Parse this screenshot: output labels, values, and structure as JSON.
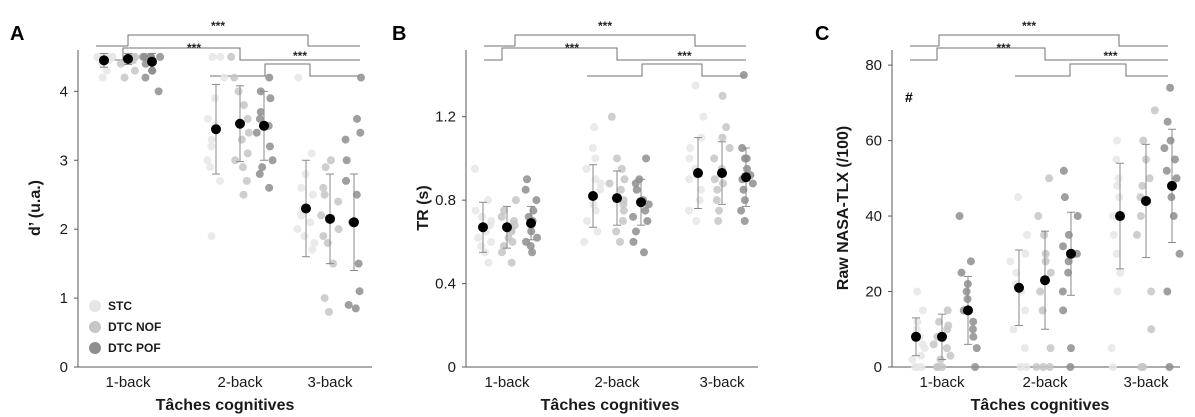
{
  "colors": {
    "stc": "#e6e6e6",
    "nof": "#c6c6c6",
    "pof": "#8e8e8e",
    "mean": "#000000",
    "errorbar": "#8a8a8a"
  },
  "legend": {
    "items": [
      {
        "label": "STC",
        "color": "#e6e6e6"
      },
      {
        "label": "DTC NOF",
        "color": "#c6c6c6"
      },
      {
        "label": "DTC POF",
        "color": "#8e8e8e"
      }
    ]
  },
  "significance": {
    "label": "***",
    "hash": "#"
  },
  "chart_data": [
    {
      "type": "scatter",
      "panel": "A",
      "ylabel": "d’ (u.a.)",
      "xlabel": "Tâches cognitives",
      "categories": [
        "1-back",
        "2-back",
        "3-back"
      ],
      "ylim": [
        0,
        4.6
      ],
      "yticks": [
        "0",
        "1",
        "2",
        "3",
        "4"
      ],
      "ytick_values": [
        0,
        1,
        2,
        3,
        4
      ],
      "series": [
        {
          "name": "STC",
          "means": [
            4.45,
            3.45,
            2.3
          ],
          "sd": [
            0.1,
            0.65,
            0.7
          ],
          "points": [
            [
              4.5,
              4.5,
              4.5,
              4.45,
              4.4,
              4.3,
              4.5,
              4.5,
              4.2,
              4.5
            ],
            [
              4.5,
              3.9,
              3.5,
              3.2,
              3.0,
              2.9,
              3.6,
              4.2,
              1.9,
              3.3,
              4.5,
              2.7
            ],
            [
              4.2,
              2.6,
              2.3,
              2.0,
              1.8,
              3.1,
              2.2,
              2.5,
              1.9,
              2.8,
              2.1,
              1.7
            ]
          ]
        },
        {
          "name": "DTC NOF",
          "means": [
            4.47,
            3.53,
            2.15
          ],
          "sd": [
            0.08,
            0.55,
            0.65
          ],
          "points": [
            [
              4.5,
              4.5,
              4.5,
              4.4,
              4.45,
              4.3,
              4.5,
              4.5,
              4.5,
              4.2
            ],
            [
              4.5,
              3.6,
              3.0,
              3.3,
              2.5,
              4.2,
              3.8,
              3.4,
              2.9,
              4.0,
              3.1,
              2.7
            ],
            [
              2.9,
              2.4,
              2.0,
              1.5,
              1.8,
              0.8,
              2.5,
              2.2,
              1.0,
              2.6,
              1.9,
              3.0
            ]
          ]
        },
        {
          "name": "DTC POF",
          "means": [
            4.43,
            3.5,
            2.1
          ],
          "sd": [
            0.12,
            0.5,
            0.7
          ],
          "points": [
            [
              4.5,
              4.5,
              4.4,
              4.5,
              4.3,
              4.2,
              4.5,
              4.0,
              4.5,
              4.3
            ],
            [
              4.2,
              3.9,
              3.5,
              3.2,
              2.9,
              2.6,
              3.7,
              4.0,
              3.4,
              3.0,
              2.8,
              3.6
            ],
            [
              4.2,
              3.6,
              3.4,
              3.0,
              2.7,
              2.1,
              1.5,
              1.1,
              0.9,
              0.85,
              2.5,
              3.3
            ]
          ]
        }
      ]
    },
    {
      "type": "scatter",
      "panel": "B",
      "ylabel": "TR (s)",
      "xlabel": "Tâches cognitives",
      "categories": [
        "1-back",
        "2-back",
        "3-back"
      ],
      "ylim": [
        0,
        1.52
      ],
      "yticks": [
        "0",
        "0.4",
        "0.8",
        "1.2"
      ],
      "ytick_values": [
        0,
        0.4,
        0.8,
        1.2
      ],
      "series": [
        {
          "name": "STC",
          "means": [
            0.67,
            0.82,
            0.93
          ],
          "sd": [
            0.12,
            0.15,
            0.17
          ],
          "points": [
            [
              0.95,
              0.7,
              0.65,
              0.6,
              0.55,
              0.72,
              0.62,
              0.8,
              0.68,
              0.58,
              0.75,
              0.5
            ],
            [
              1.15,
              0.9,
              0.85,
              0.75,
              0.7,
              0.65,
              1.0,
              0.95,
              0.78,
              0.6,
              0.88,
              1.05
            ],
            [
              1.35,
              1.0,
              0.95,
              0.9,
              0.85,
              0.75,
              1.1,
              0.7,
              1.2,
              0.8,
              0.92,
              1.05
            ]
          ]
        },
        {
          "name": "DTC NOF",
          "means": [
            0.67,
            0.81,
            0.93
          ],
          "sd": [
            0.1,
            0.13,
            0.15
          ],
          "points": [
            [
              0.8,
              0.7,
              0.65,
              0.6,
              0.55,
              0.72,
              0.68,
              0.62,
              0.58,
              0.75,
              0.5,
              0.66
            ],
            [
              1.2,
              0.95,
              0.88,
              0.8,
              0.75,
              0.7,
              0.65,
              1.0,
              0.85,
              0.78,
              0.6,
              0.9
            ],
            [
              1.3,
              1.1,
              1.0,
              0.95,
              0.9,
              0.85,
              0.8,
              0.75,
              1.05,
              0.7,
              1.15,
              0.88
            ]
          ]
        },
        {
          "name": "DTC POF",
          "means": [
            0.69,
            0.79,
            0.91
          ],
          "sd": [
            0.08,
            0.11,
            0.14
          ],
          "points": [
            [
              0.9,
              0.8,
              0.75,
              0.7,
              0.65,
              0.6,
              0.55,
              0.72,
              0.68,
              0.62,
              0.85,
              0.58
            ],
            [
              1.0,
              0.9,
              0.85,
              0.8,
              0.75,
              0.7,
              0.65,
              0.6,
              0.55,
              0.88,
              0.78,
              0.72
            ],
            [
              1.4,
              1.05,
              1.0,
              0.95,
              0.9,
              0.85,
              0.8,
              0.75,
              0.7,
              0.92,
              0.88,
              1.0
            ]
          ]
        }
      ]
    },
    {
      "type": "scatter",
      "panel": "C",
      "ylabel": "Raw NASA-TLX (/100)",
      "xlabel": "Tâches cognitives",
      "categories": [
        "1-back",
        "2-back",
        "3-back"
      ],
      "ylim": [
        0,
        84
      ],
      "yticks": [
        "0",
        "20",
        "40",
        "60",
        "80"
      ],
      "ytick_values": [
        0,
        20,
        40,
        60,
        80
      ],
      "series": [
        {
          "name": "STC",
          "means": [
            8,
            21,
            40
          ],
          "sd": [
            5,
            10,
            14
          ],
          "points": [
            [
              20,
              15,
              12,
              10,
              8,
              5,
              2,
              0,
              0,
              6,
              3,
              0
            ],
            [
              45,
              35,
              30,
              25,
              20,
              15,
              10,
              5,
              0,
              0,
              28,
              22
            ],
            [
              60,
              55,
              50,
              45,
              40,
              35,
              30,
              20,
              5,
              0,
              48,
              25
            ]
          ]
        },
        {
          "name": "DTC NOF",
          "means": [
            8,
            23,
            44
          ],
          "sd": [
            6,
            13,
            15
          ],
          "points": [
            [
              15,
              12,
              10,
              8,
              5,
              2,
              0,
              0,
              0,
              6,
              11,
              3
            ],
            [
              50,
              40,
              35,
              28,
              20,
              15,
              5,
              0,
              0,
              30,
              25,
              0
            ],
            [
              68,
              60,
              55,
              50,
              45,
              40,
              35,
              20,
              10,
              0,
              0,
              48
            ]
          ]
        },
        {
          "name": "DTC POF",
          "means": [
            15,
            30,
            48
          ],
          "sd": [
            9,
            11,
            15
          ],
          "points": [
            [
              40,
              28,
              25,
              20,
              18,
              15,
              10,
              5,
              0,
              22,
              12,
              8
            ],
            [
              52,
              45,
              40,
              35,
              30,
              25,
              20,
              15,
              5,
              0,
              32,
              28
            ],
            [
              74,
              65,
              60,
              55,
              50,
              45,
              40,
              30,
              20,
              0,
              58,
              52
            ]
          ]
        }
      ]
    }
  ]
}
